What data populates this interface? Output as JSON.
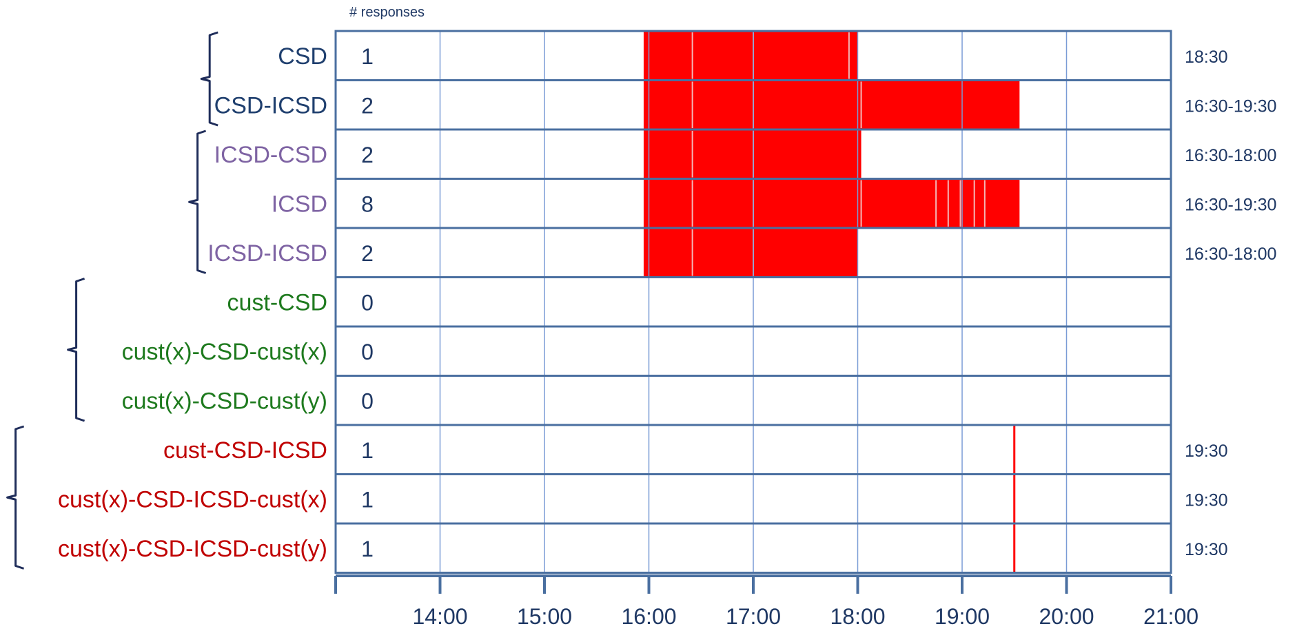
{
  "colors": {
    "frame": "#4a6fa0",
    "gridline": "#7a9cd6",
    "fill": "#ff0000",
    "bracket": "#1f2d5a",
    "group_csd": "#1f3f6e",
    "group_icsd": "#7e63a3",
    "group_cust": "#1e7a1e",
    "group_cust_icsd": "#c00000"
  },
  "chart_data": {
    "type": "timeline",
    "count_header": "# responses",
    "x_ticks": [
      "14:00",
      "15:00",
      "16:00",
      "17:00",
      "18:00",
      "19:00",
      "20:00",
      "21:00"
    ],
    "x_domain": [
      "13:00",
      "21:00"
    ],
    "groups": [
      {
        "color_key": "group_csd",
        "rows": [
          0,
          1
        ]
      },
      {
        "color_key": "group_icsd",
        "rows": [
          2,
          3,
          4
        ]
      },
      {
        "color_key": "group_cust",
        "rows": [
          5,
          6,
          7
        ]
      },
      {
        "color_key": "group_cust_icsd",
        "rows": [
          8,
          9,
          10
        ]
      }
    ],
    "rows": [
      {
        "label": "CSD",
        "color_key": "group_csd",
        "count": "1",
        "range_label": "18:30",
        "segments": [
          [
            "15:57",
            "18:00"
          ]
        ],
        "separators": [
          "16:25",
          "17:00",
          "17:55"
        ],
        "lines": []
      },
      {
        "label": "CSD-ICSD",
        "color_key": "group_csd",
        "count": "2",
        "range_label": "16:30-19:30",
        "segments": [
          [
            "15:57",
            "19:33"
          ]
        ],
        "separators": [
          "16:25",
          "17:00",
          "18:02"
        ],
        "lines": []
      },
      {
        "label": "ICSD-CSD",
        "color_key": "group_icsd",
        "count": "2",
        "range_label": "16:30-18:00",
        "segments": [
          [
            "15:57",
            "18:02"
          ]
        ],
        "separators": [
          "16:25",
          "17:00"
        ],
        "lines": []
      },
      {
        "label": "ICSD",
        "color_key": "group_icsd",
        "count": "8",
        "range_label": "16:30-19:30",
        "segments": [
          [
            "15:57",
            "19:33"
          ]
        ],
        "separators": [
          "16:25",
          "17:00",
          "18:02",
          "18:45",
          "18:52",
          "18:59",
          "19:07",
          "19:13"
        ],
        "lines": []
      },
      {
        "label": "ICSD-ICSD",
        "color_key": "group_icsd",
        "count": "2",
        "range_label": "16:30-18:00",
        "segments": [
          [
            "15:57",
            "18:00"
          ]
        ],
        "separators": [
          "16:25",
          "17:00"
        ],
        "lines": []
      },
      {
        "label": "cust-CSD",
        "color_key": "group_cust",
        "count": "0",
        "range_label": "",
        "segments": [],
        "separators": [],
        "lines": []
      },
      {
        "label": "cust(x)-CSD-cust(x)",
        "color_key": "group_cust",
        "count": "0",
        "range_label": "",
        "segments": [],
        "separators": [],
        "lines": []
      },
      {
        "label": "cust(x)-CSD-cust(y)",
        "color_key": "group_cust",
        "count": "0",
        "range_label": "",
        "segments": [],
        "separators": [],
        "lines": []
      },
      {
        "label": "cust-CSD-ICSD",
        "color_key": "group_cust_icsd",
        "count": "1",
        "range_label": "19:30",
        "segments": [],
        "separators": [],
        "lines": [
          "19:30"
        ]
      },
      {
        "label": "cust(x)-CSD-ICSD-cust(x)",
        "color_key": "group_cust_icsd",
        "count": "1",
        "range_label": "19:30",
        "segments": [],
        "separators": [],
        "lines": [
          "19:30"
        ]
      },
      {
        "label": "cust(x)-CSD-ICSD-cust(y)",
        "color_key": "group_cust_icsd",
        "count": "1",
        "range_label": "19:30",
        "segments": [],
        "separators": [],
        "lines": [
          "19:30"
        ]
      }
    ]
  }
}
